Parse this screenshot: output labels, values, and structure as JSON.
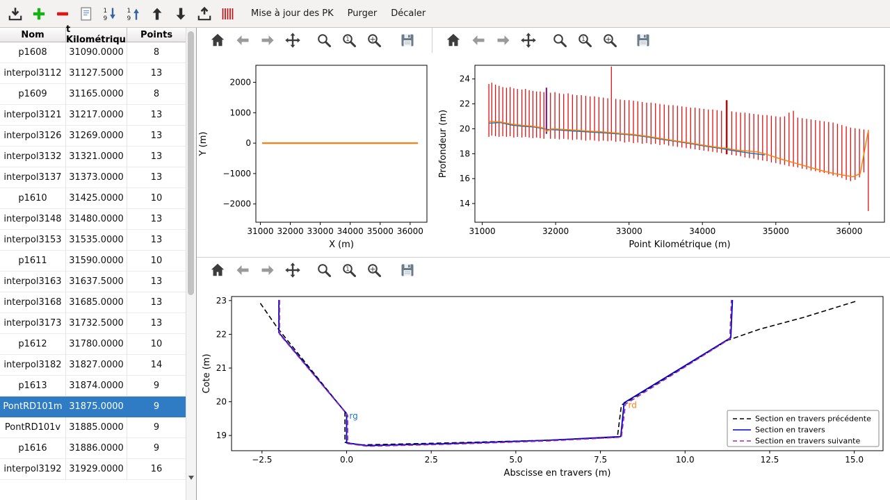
{
  "toolbar": {
    "icons": [
      "import",
      "add",
      "remove",
      "edit",
      "sort-desc",
      "sort-asc",
      "move-up",
      "move-down",
      "export",
      "sections"
    ],
    "menu_items": [
      "Mise à jour des PK",
      "Purger",
      "Décaler"
    ]
  },
  "plot_toolbars": {
    "icons": [
      "home",
      "back",
      "forward",
      "pan",
      "zoom",
      "zoom-one",
      "zoom-plus",
      "save"
    ],
    "overflow": "»"
  },
  "table": {
    "columns": [
      "Nom",
      "t Kilométriqu",
      "Points"
    ],
    "selected": "PontRD101m",
    "rows": [
      [
        "p1608",
        "31090.0000",
        "8"
      ],
      [
        "interpol3112",
        "31127.5000",
        "13"
      ],
      [
        "p1609",
        "31165.0000",
        "8"
      ],
      [
        "interpol3121",
        "31217.0000",
        "13"
      ],
      [
        "interpol3126",
        "31269.0000",
        "13"
      ],
      [
        "interpol3132",
        "31321.0000",
        "13"
      ],
      [
        "interpol3137",
        "31373.0000",
        "13"
      ],
      [
        "p1610",
        "31425.0000",
        "10"
      ],
      [
        "interpol3148",
        "31480.0000",
        "13"
      ],
      [
        "interpol3153",
        "31535.0000",
        "13"
      ],
      [
        "p1611",
        "31590.0000",
        "10"
      ],
      [
        "interpol3163",
        "31637.5000",
        "13"
      ],
      [
        "interpol3168",
        "31685.0000",
        "13"
      ],
      [
        "interpol3173",
        "31732.5000",
        "13"
      ],
      [
        "p1612",
        "31780.0000",
        "10"
      ],
      [
        "interpol3182",
        "31827.0000",
        "14"
      ],
      [
        "p1613",
        "31874.0000",
        "9"
      ],
      [
        "PontRD101m",
        "31875.0000",
        "9"
      ],
      [
        "PontRD101v",
        "31885.0000",
        "9"
      ],
      [
        "p1616",
        "31886.0000",
        "9"
      ],
      [
        "interpol3192",
        "31929.0000",
        "16"
      ]
    ]
  },
  "colors": {
    "selection": "#2f7cc4",
    "bars": "#dd1111",
    "mpl_blue": "#1f77b4",
    "mpl_orange": "#ff7f0e",
    "section_current": "#0000cc",
    "section_previous": "#000000",
    "section_next": "#a22aa2"
  },
  "chart_data": [
    {
      "type": "line",
      "title": "",
      "xlabel": "X (m)",
      "ylabel": "Y (m)",
      "xlim": [
        30850,
        36560
      ],
      "ylim": [
        -2600,
        2560
      ],
      "xticks": [
        31000,
        32000,
        33000,
        34000,
        35000,
        36000
      ],
      "xtick_labels": [
        "31000",
        "32000",
        "33000",
        "34000",
        "35000",
        "36000"
      ],
      "yticks": [
        -2000,
        -1000,
        0,
        1000,
        2000
      ],
      "ytick_labels": [
        "−2000",
        "−1000",
        "0",
        "1000",
        "2000"
      ],
      "layout": {
        "margins": {
          "l": 85,
          "r": 8,
          "t": 18,
          "b": 50
        },
        "ylabel_x": 13
      },
      "series": [
        {
          "name": "trace-xy",
          "color": "#ff7f0e",
          "width": 2.2,
          "dash": false,
          "points": [
            [
              31060,
              0
            ],
            [
              36260,
              0
            ]
          ]
        }
      ]
    },
    {
      "type": "line",
      "title": "",
      "xlabel": "Point Kilométrique (m)",
      "ylabel": "Profondeur (m)",
      "xlim": [
        30900,
        36480
      ],
      "ylim": [
        12.5,
        25.1
      ],
      "xticks": [
        31000,
        32000,
        33000,
        34000,
        35000,
        36000
      ],
      "xtick_labels": [
        "31000",
        "32000",
        "33000",
        "34000",
        "35000",
        "36000"
      ],
      "yticks": [
        14,
        16,
        18,
        20,
        22,
        24
      ],
      "ytick_labels": [
        "14",
        "16",
        "18",
        "20",
        "22",
        "24"
      ],
      "layout": {
        "margins": {
          "l": 61,
          "r": 8,
          "t": 18,
          "b": 50
        },
        "ylabel_x": 19
      },
      "bar_color": "#dd1111",
      "bars": [
        [
          31090,
          19.35,
          23.6
        ],
        [
          31130,
          19.45,
          23.7
        ],
        [
          31180,
          19.4,
          23.55
        ],
        [
          31230,
          19.35,
          23.45
        ],
        [
          31280,
          19.4,
          23.35
        ],
        [
          31330,
          19.35,
          23.3
        ],
        [
          31380,
          19.4,
          23.35
        ],
        [
          31430,
          19.3,
          23.25
        ],
        [
          31480,
          19.35,
          23.2
        ],
        [
          31540,
          19.3,
          23.15
        ],
        [
          31590,
          19.35,
          23.2
        ],
        [
          31640,
          19.3,
          23.1
        ],
        [
          31690,
          19.25,
          23.05
        ],
        [
          31740,
          19.3,
          23.0
        ],
        [
          31790,
          19.25,
          23.0
        ],
        [
          31840,
          19.2,
          22.95
        ],
        [
          31875,
          19.6,
          23.3,
          "#8b1a8b",
          2.2
        ],
        [
          31930,
          19.2,
          22.9
        ],
        [
          31990,
          19.2,
          22.95
        ],
        [
          32050,
          19.15,
          22.85
        ],
        [
          32110,
          19.2,
          22.8
        ],
        [
          32170,
          19.15,
          22.85
        ],
        [
          32230,
          19.1,
          22.75
        ],
        [
          32290,
          19.15,
          22.7
        ],
        [
          32350,
          19.1,
          22.7
        ],
        [
          32410,
          19.05,
          22.65
        ],
        [
          32470,
          19.1,
          22.6
        ],
        [
          32530,
          19.05,
          22.6
        ],
        [
          32590,
          19.0,
          22.55
        ],
        [
          32650,
          19.05,
          22.5
        ],
        [
          32710,
          19.0,
          22.45
        ],
        [
          32760,
          19.05,
          25.0
        ],
        [
          32820,
          18.95,
          22.4
        ],
        [
          32880,
          19.0,
          22.35
        ],
        [
          32940,
          18.9,
          22.3
        ],
        [
          33000,
          18.95,
          22.3
        ],
        [
          33060,
          18.85,
          22.25
        ],
        [
          33120,
          18.9,
          22.2
        ],
        [
          33180,
          18.8,
          22.15
        ],
        [
          33240,
          18.85,
          22.1
        ],
        [
          33300,
          18.75,
          22.1
        ],
        [
          33360,
          18.8,
          22.05
        ],
        [
          33420,
          18.7,
          22.0
        ],
        [
          33480,
          18.75,
          21.95
        ],
        [
          33540,
          18.65,
          21.9
        ],
        [
          33600,
          18.6,
          21.9
        ],
        [
          33660,
          18.55,
          21.85
        ],
        [
          33720,
          18.5,
          21.8
        ],
        [
          33780,
          18.45,
          21.75
        ],
        [
          33840,
          18.4,
          21.7
        ],
        [
          33900,
          18.35,
          21.7
        ],
        [
          33960,
          18.3,
          21.65
        ],
        [
          34020,
          18.25,
          21.6
        ],
        [
          34080,
          18.2,
          21.55
        ],
        [
          34140,
          18.15,
          21.55
        ],
        [
          34200,
          18.1,
          21.5
        ],
        [
          34260,
          18.05,
          21.45
        ],
        [
          34330,
          17.95,
          22.3,
          "#aa1111",
          2.6
        ],
        [
          34400,
          17.9,
          21.4
        ],
        [
          34460,
          17.85,
          21.35
        ],
        [
          34520,
          17.8,
          21.3
        ],
        [
          34580,
          17.7,
          21.3
        ],
        [
          34640,
          17.65,
          21.25
        ],
        [
          34700,
          17.6,
          21.2
        ],
        [
          34760,
          17.5,
          21.15
        ],
        [
          34820,
          17.45,
          21.1
        ],
        [
          34880,
          17.4,
          21.1
        ],
        [
          34940,
          17.3,
          21.05
        ],
        [
          35000,
          17.25,
          21.0
        ],
        [
          35060,
          17.15,
          20.95
        ],
        [
          35120,
          17.1,
          21.0
        ],
        [
          35180,
          17.0,
          21.3
        ],
        [
          35240,
          16.95,
          21.45
        ],
        [
          35300,
          16.9,
          20.9
        ],
        [
          35360,
          16.8,
          20.85
        ],
        [
          35420,
          16.75,
          20.8
        ],
        [
          35480,
          16.65,
          20.75
        ],
        [
          35540,
          16.6,
          20.7
        ],
        [
          35600,
          16.5,
          20.65
        ],
        [
          35660,
          16.45,
          20.6
        ],
        [
          35720,
          16.35,
          20.55
        ],
        [
          35780,
          16.25,
          20.5
        ],
        [
          35840,
          16.15,
          20.4
        ],
        [
          35900,
          16.05,
          20.3
        ],
        [
          35960,
          15.9,
          20.2
        ],
        [
          36020,
          15.8,
          20.1
        ],
        [
          36080,
          15.9,
          20.05
        ],
        [
          36140,
          16.1,
          20.0
        ],
        [
          36200,
          16.5,
          19.95
        ],
        [
          36260,
          13.4,
          19.9
        ]
      ],
      "series": [
        {
          "name": "profondeur-bleu",
          "color": "#1f77b4",
          "width": 1.5,
          "dash": false,
          "points": [
            [
              31090,
              20.45
            ],
            [
              31250,
              20.5
            ],
            [
              31400,
              20.3
            ],
            [
              31550,
              20.2
            ],
            [
              31700,
              20.15
            ],
            [
              31850,
              20.0
            ],
            [
              31875,
              19.95
            ],
            [
              32050,
              19.9
            ],
            [
              32250,
              19.82
            ],
            [
              32450,
              19.75
            ],
            [
              32650,
              19.68
            ],
            [
              32850,
              19.6
            ],
            [
              33050,
              19.5
            ],
            [
              33250,
              19.35
            ],
            [
              33450,
              19.15
            ],
            [
              33650,
              18.98
            ],
            [
              33850,
              18.8
            ],
            [
              34050,
              18.6
            ],
            [
              34250,
              18.42
            ],
            [
              34450,
              18.22
            ],
            [
              34650,
              18.05
            ],
            [
              34850,
              17.9
            ]
          ]
        },
        {
          "name": "profondeur-orange",
          "color": "#ff7f0e",
          "width": 1.5,
          "dash": false,
          "points": [
            [
              31090,
              20.6
            ],
            [
              31250,
              20.55
            ],
            [
              31400,
              20.38
            ],
            [
              31550,
              20.28
            ],
            [
              31700,
              20.2
            ],
            [
              31850,
              20.05
            ],
            [
              31875,
              19.8
            ],
            [
              31950,
              20.0
            ],
            [
              32050,
              19.97
            ],
            [
              32250,
              19.9
            ],
            [
              32450,
              19.82
            ],
            [
              32650,
              19.75
            ],
            [
              32850,
              19.65
            ],
            [
              33050,
              19.55
            ],
            [
              33250,
              19.4
            ],
            [
              33450,
              19.2
            ],
            [
              33650,
              19.02
            ],
            [
              33850,
              18.85
            ],
            [
              34050,
              18.65
            ],
            [
              34250,
              18.48
            ],
            [
              34350,
              18.42
            ],
            [
              34450,
              18.3
            ],
            [
              34600,
              18.22
            ],
            [
              34750,
              18.15
            ],
            [
              34900,
              17.9
            ],
            [
              35050,
              17.6
            ],
            [
              35200,
              17.35
            ],
            [
              35350,
              17.1
            ],
            [
              35500,
              16.85
            ],
            [
              35650,
              16.6
            ],
            [
              35800,
              16.4
            ],
            [
              35950,
              16.25
            ],
            [
              36050,
              16.15
            ],
            [
              36150,
              16.4
            ],
            [
              36260,
              19.85
            ]
          ]
        }
      ]
    },
    {
      "type": "line",
      "title": "",
      "xlabel": "Abscisse en travers (m)",
      "ylabel": "Cote (m)",
      "xlim": [
        -3.4,
        15.85
      ],
      "ylim": [
        18.55,
        23.12
      ],
      "xticks": [
        -2.5,
        0,
        2.5,
        5,
        7.5,
        10,
        12.5,
        15
      ],
      "xtick_labels": [
        "−2.5",
        "0.0",
        "2.5",
        "5.0",
        "7.5",
        "10.0",
        "12.5",
        "15.0"
      ],
      "yticks": [
        19,
        20,
        21,
        22,
        23
      ],
      "ytick_labels": [
        "19",
        "20",
        "21",
        "22",
        "23"
      ],
      "layout": {
        "margins": {
          "l": 50,
          "r": 10,
          "t": 20,
          "b": 72
        },
        "ylabel_x": 18
      },
      "series": [
        {
          "name": "Section en travers précédente",
          "color": "#000000",
          "width": 1.6,
          "dash": true,
          "points": [
            [
              -2.55,
              22.92
            ],
            [
              -2.05,
              22.2
            ],
            [
              -0.05,
              19.7
            ],
            [
              -0.05,
              18.8
            ],
            [
              0.4,
              18.72
            ],
            [
              3,
              18.78
            ],
            [
              6,
              18.86
            ],
            [
              8.0,
              18.95
            ],
            [
              8.12,
              19.9
            ],
            [
              11.25,
              21.82
            ],
            [
              12.2,
              22.15
            ],
            [
              13.5,
              22.5
            ],
            [
              15.05,
              22.98
            ]
          ]
        },
        {
          "name": "Section en travers",
          "color": "#0000cc",
          "width": 1.8,
          "dash": false,
          "points": [
            [
              -2.0,
              23.02
            ],
            [
              -2.0,
              22.05
            ],
            [
              0.0,
              19.65
            ],
            [
              0.0,
              18.78
            ],
            [
              0.6,
              18.7
            ],
            [
              3.0,
              18.76
            ],
            [
              6.0,
              18.86
            ],
            [
              8.1,
              18.97
            ],
            [
              8.2,
              19.97
            ],
            [
              11.35,
              21.9
            ],
            [
              11.4,
              23.02
            ]
          ]
        },
        {
          "name": "Section en travers suivante",
          "color": "#a22aa2",
          "width": 1.6,
          "dash": true,
          "points": [
            [
              -1.98,
              23.02
            ],
            [
              -1.98,
              22.0
            ],
            [
              0.03,
              19.6
            ],
            [
              0.03,
              18.76
            ],
            [
              0.62,
              18.68
            ],
            [
              3.0,
              18.74
            ],
            [
              6.0,
              18.84
            ],
            [
              8.12,
              18.95
            ],
            [
              8.24,
              19.93
            ],
            [
              11.32,
              21.86
            ],
            [
              11.37,
              23.02
            ]
          ]
        }
      ],
      "annotations": [
        {
          "x": 0.08,
          "y": 19.5,
          "text": "rg",
          "color": "#1f77b4"
        },
        {
          "x": 8.32,
          "y": 19.82,
          "text": "rd",
          "color": "#ff7f0e"
        }
      ],
      "legend": {
        "position": "lower right",
        "entries": [
          {
            "label": "Section en travers précédente",
            "color": "#000000",
            "dash": true
          },
          {
            "label": "Section en travers",
            "color": "#0000cc",
            "dash": false
          },
          {
            "label": "Section en travers suivante",
            "color": "#a22aa2",
            "dash": true
          }
        ]
      }
    }
  ]
}
